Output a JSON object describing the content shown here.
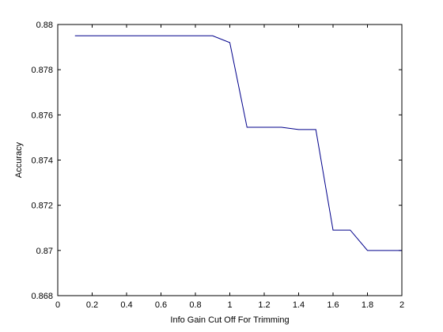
{
  "chart_data": {
    "type": "line",
    "title": "",
    "xlabel": "Info Gain Cut Off For Trimming",
    "ylabel": "Accuracy",
    "xlim": [
      0,
      2
    ],
    "ylim": [
      0.868,
      0.88
    ],
    "x_ticks": [
      "0",
      "0.2",
      "0.4",
      "0.6",
      "0.8",
      "1",
      "1.2",
      "1.4",
      "1.6",
      "1.8",
      "2"
    ],
    "x_tick_values": [
      0,
      0.2,
      0.4,
      0.6,
      0.8,
      1.0,
      1.2,
      1.4,
      1.6,
      1.8,
      2.0
    ],
    "y_ticks": [
      "0.868",
      "0.87",
      "0.872",
      "0.874",
      "0.876",
      "0.878",
      "0.88"
    ],
    "y_tick_values": [
      0.868,
      0.87,
      0.872,
      0.874,
      0.876,
      0.878,
      0.88
    ],
    "grid": false,
    "legend": "none",
    "series": [
      {
        "color": "#00008b",
        "x": [
          0.1,
          0.2,
          0.3,
          0.4,
          0.5,
          0.6,
          0.7,
          0.8,
          0.9,
          1.0,
          1.1,
          1.2,
          1.3,
          1.4,
          1.5,
          1.6,
          1.7,
          1.8,
          1.9,
          2.0
        ],
        "y": [
          0.8795,
          0.8795,
          0.8795,
          0.8795,
          0.8795,
          0.8795,
          0.8795,
          0.8795,
          0.8795,
          0.8792,
          0.87545,
          0.87545,
          0.87545,
          0.87535,
          0.87535,
          0.8709,
          0.8709,
          0.87,
          0.87,
          0.87
        ]
      }
    ]
  }
}
